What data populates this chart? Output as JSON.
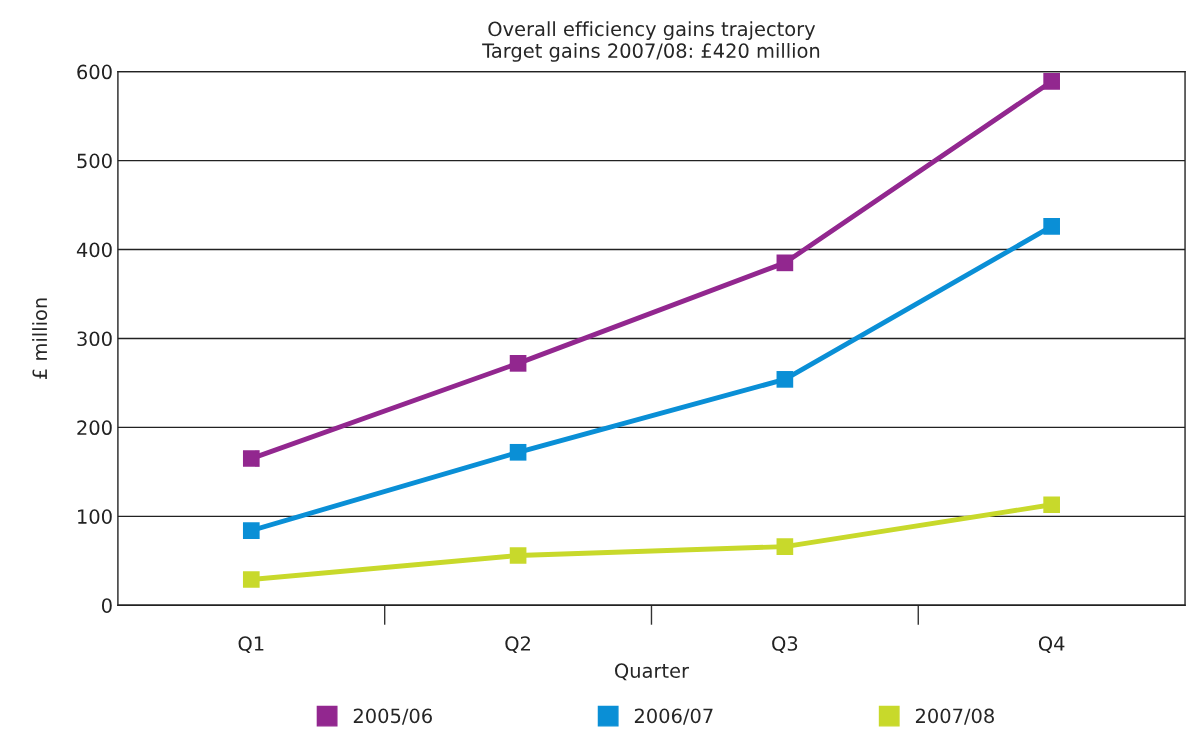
{
  "chart_data": {
    "type": "line",
    "title": "Overall efficiency gains trajectory\nTarget gains 2007/08: £420 million",
    "xlabel": "Quarter",
    "ylabel": "£ million",
    "categories": [
      "Q1",
      "Q2",
      "Q3",
      "Q4"
    ],
    "series": [
      {
        "name": "2005/06",
        "color": "#92278f",
        "values": [
          165,
          272,
          385,
          589
        ]
      },
      {
        "name": "2006/07",
        "color": "#0a8fd6",
        "values": [
          84,
          172,
          254,
          426
        ]
      },
      {
        "name": "2007/08",
        "color": "#c8d92b",
        "values": [
          29,
          56,
          66,
          113
        ]
      }
    ],
    "ylim": [
      0,
      600
    ],
    "yticks": [
      0,
      100,
      200,
      300,
      400,
      500,
      600
    ],
    "grid": "y",
    "legend": "bottom",
    "marker": "square",
    "line_style": "solid"
  }
}
